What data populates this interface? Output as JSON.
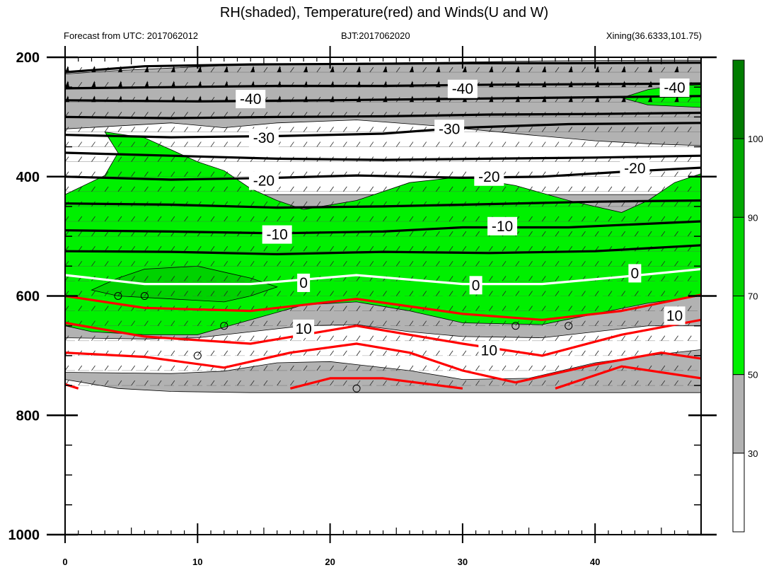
{
  "chart_data": {
    "type": "contour",
    "title": "RH(shaded), Temperature(red) and Winds(U and W)",
    "subtitle_left": "Forecast from UTC: 2017062012",
    "subtitle_center": "BJT:2017062020",
    "subtitle_right": "Xining(36.6333,101.75)",
    "x_range": [
      0,
      48
    ],
    "y_range": [
      200,
      1000
    ],
    "y_reversed": true,
    "x_ticks": [
      0,
      10,
      20,
      30,
      40
    ],
    "y_ticks": [
      200,
      400,
      600,
      800,
      1000
    ],
    "colorbar": {
      "tick_labels": [
        "30",
        "50",
        "70",
        "90",
        "100"
      ],
      "colors": [
        "#ffffff",
        "#b2b2b2",
        "#00f000",
        "#00d200",
        "#00a800",
        "#007c00"
      ]
    },
    "temperature_contours": [
      {
        "value": -40,
        "label": "-40",
        "color": "#000000",
        "points": [
          [
            0,
            225
          ],
          [
            6,
            215
          ],
          [
            14,
            212
          ],
          [
            22,
            211
          ],
          [
            30,
            210
          ],
          [
            38,
            210
          ],
          [
            48,
            209
          ]
        ]
      },
      {
        "value": -40,
        "label": "-40",
        "color": "#000000",
        "points": [
          [
            0,
            252
          ],
          [
            8,
            250
          ],
          [
            16,
            248
          ],
          [
            24,
            248
          ],
          [
            32,
            246
          ],
          [
            40,
            245
          ],
          [
            48,
            244
          ]
        ]
      },
      {
        "value": -40,
        "label": "-40",
        "color": "#000000",
        "points": [
          [
            0,
            272
          ],
          [
            10,
            274
          ],
          [
            20,
            272
          ],
          [
            28,
            270
          ],
          [
            36,
            268
          ],
          [
            44,
            266
          ],
          [
            48,
            265
          ]
        ]
      },
      {
        "value": -30,
        "label": "-30",
        "color": "#000000",
        "points": [
          [
            0,
            300
          ],
          [
            8,
            302
          ],
          [
            16,
            300
          ],
          [
            24,
            299
          ],
          [
            32,
            296
          ],
          [
            40,
            295
          ],
          [
            48,
            293
          ]
        ]
      },
      {
        "value": -30,
        "label": "-30",
        "color": "#000000",
        "points": [
          [
            0,
            330
          ],
          [
            8,
            334
          ],
          [
            16,
            332
          ],
          [
            24,
            328
          ],
          [
            30,
            318
          ],
          [
            38,
            312
          ],
          [
            48,
            310
          ]
        ]
      },
      {
        "value": -20,
        "label": "-20",
        "color": "#000000",
        "points": [
          [
            0,
            360
          ],
          [
            8,
            365
          ],
          [
            16,
            370
          ],
          [
            24,
            372
          ],
          [
            32,
            370
          ],
          [
            40,
            368
          ],
          [
            48,
            365
          ]
        ]
      },
      {
        "value": -20,
        "label": "-20",
        "color": "#000000",
        "points": [
          [
            0,
            400
          ],
          [
            8,
            405
          ],
          [
            16,
            402
          ],
          [
            22,
            398
          ],
          [
            30,
            402
          ],
          [
            36,
            400
          ],
          [
            42,
            392
          ],
          [
            48,
            385
          ]
        ]
      },
      {
        "value": -10,
        "label": "-10",
        "color": "#000000",
        "points": [
          [
            0,
            445
          ],
          [
            8,
            447
          ],
          [
            16,
            452
          ],
          [
            24,
            450
          ],
          [
            32,
            446
          ],
          [
            40,
            442
          ],
          [
            48,
            440
          ]
        ]
      },
      {
        "value": -10,
        "label": "-10",
        "color": "#000000",
        "points": [
          [
            0,
            490
          ],
          [
            8,
            492
          ],
          [
            16,
            495
          ],
          [
            24,
            492
          ],
          [
            30,
            485
          ],
          [
            38,
            485
          ],
          [
            48,
            475
          ]
        ]
      },
      {
        "value": -10,
        "label": "-10",
        "color": "#000000",
        "points": [
          [
            0,
            525
          ],
          [
            8,
            526
          ],
          [
            16,
            530
          ],
          [
            24,
            526
          ],
          [
            32,
            528
          ],
          [
            40,
            525
          ],
          [
            48,
            515
          ]
        ]
      },
      {
        "value": 0,
        "label": "0",
        "color": "#ffffff",
        "points": [
          [
            0,
            565
          ],
          [
            6,
            580
          ],
          [
            14,
            580
          ],
          [
            22,
            565
          ],
          [
            30,
            580
          ],
          [
            36,
            580
          ],
          [
            42,
            568
          ],
          [
            48,
            555
          ]
        ]
      },
      {
        "value": 10,
        "label": "10",
        "color": "#ff0000",
        "points": [
          [
            0,
            600
          ],
          [
            6,
            620
          ],
          [
            14,
            625
          ],
          [
            22,
            605
          ],
          [
            30,
            630
          ],
          [
            36,
            640
          ],
          [
            42,
            625
          ],
          [
            48,
            598
          ]
        ]
      },
      {
        "value": 10,
        "label": "10",
        "color": "#ff0000",
        "points": [
          [
            0,
            645
          ],
          [
            6,
            668
          ],
          [
            14,
            680
          ],
          [
            22,
            650
          ],
          [
            30,
            680
          ],
          [
            36,
            700
          ],
          [
            42,
            665
          ],
          [
            48,
            640
          ]
        ]
      },
      {
        "value": 10,
        "label": "10",
        "color": "#ff0000",
        "points": [
          [
            0,
            695
          ],
          [
            6,
            702
          ],
          [
            12,
            720
          ],
          [
            17,
            695
          ],
          [
            22,
            680
          ],
          [
            26,
            695
          ],
          [
            30,
            725
          ],
          [
            34,
            745
          ],
          [
            40,
            715
          ],
          [
            45,
            695
          ],
          [
            48,
            705
          ]
        ]
      },
      {
        "value": 10,
        "label": "10",
        "color": "#ff0000",
        "points": [
          [
            17,
            755
          ],
          [
            20,
            738
          ],
          [
            24,
            738
          ],
          [
            30,
            755
          ]
        ]
      },
      {
        "value": 10,
        "label": "10",
        "color": "#ff0000",
        "points": [
          [
            37,
            755
          ],
          [
            42,
            718
          ],
          [
            48,
            738
          ]
        ]
      },
      {
        "value": 10,
        "label": "10",
        "color": "#ff0000",
        "points": [
          [
            0,
            748
          ],
          [
            1,
            755
          ]
        ]
      }
    ],
    "contour_labels": [
      {
        "text": "-40",
        "x": 14,
        "y": 270
      },
      {
        "text": "-40",
        "x": 30,
        "y": 253
      },
      {
        "text": "-40",
        "x": 46,
        "y": 251
      },
      {
        "text": "-30",
        "x": 15,
        "y": 335
      },
      {
        "text": "-30",
        "x": 29,
        "y": 320
      },
      {
        "text": "-20",
        "x": 15,
        "y": 407
      },
      {
        "text": "-20",
        "x": 32,
        "y": 400
      },
      {
        "text": "-20",
        "x": 43,
        "y": 386
      },
      {
        "text": "-10",
        "x": 16,
        "y": 497
      },
      {
        "text": "-10",
        "x": 33,
        "y": 483
      },
      {
        "text": "0",
        "x": 18,
        "y": 578
      },
      {
        "text": "0",
        "x": 31,
        "y": 582
      },
      {
        "text": "0",
        "x": 43,
        "y": 562
      },
      {
        "text": "10",
        "x": 18,
        "y": 655
      },
      {
        "text": "10",
        "x": 32,
        "y": 691
      },
      {
        "text": "10",
        "x": 46,
        "y": 633
      }
    ],
    "rh_regions": [
      {
        "level": "30-50",
        "color": "#b2b2b2",
        "points": [
          [
            0,
            228
          ],
          [
            4,
            222
          ],
          [
            8,
            218
          ],
          [
            14,
            212
          ],
          [
            22,
            210
          ],
          [
            30,
            208
          ],
          [
            36,
            206
          ],
          [
            44,
            205
          ],
          [
            48,
            205
          ],
          [
            48,
            348
          ],
          [
            44,
            345
          ],
          [
            40,
            340
          ],
          [
            35,
            330
          ],
          [
            28,
            315
          ],
          [
            22,
            305
          ],
          [
            16,
            310
          ],
          [
            12,
            318
          ],
          [
            8,
            310
          ],
          [
            0,
            320
          ]
        ]
      },
      {
        "level": "30-50",
        "color": "#b2b2b2",
        "points": [
          [
            0,
            430
          ],
          [
            48,
            430
          ],
          [
            48,
            650
          ],
          [
            44,
            650
          ],
          [
            40,
            660
          ],
          [
            36,
            670
          ],
          [
            30,
            668
          ],
          [
            26,
            660
          ],
          [
            22,
            648
          ],
          [
            18,
            650
          ],
          [
            14,
            660
          ],
          [
            10,
            670
          ],
          [
            6,
            672
          ],
          [
            0,
            670
          ],
          [
            0,
            740
          ],
          [
            4,
            755
          ],
          [
            8,
            760
          ],
          [
            14,
            762
          ],
          [
            48,
            762
          ],
          [
            48,
            690
          ],
          [
            44,
            700
          ],
          [
            40,
            712
          ],
          [
            35,
            738
          ],
          [
            30,
            740
          ],
          [
            26,
            725
          ],
          [
            20,
            710
          ],
          [
            16,
            712
          ],
          [
            12,
            726
          ],
          [
            8,
            730
          ],
          [
            0,
            728
          ]
        ]
      },
      {
        "level": "50-70",
        "color": "#00f000",
        "points": [
          [
            0,
            430
          ],
          [
            3,
            398
          ],
          [
            4,
            360
          ],
          [
            3,
            325
          ],
          [
            6,
            335
          ],
          [
            8,
            355
          ],
          [
            10,
            375
          ],
          [
            12,
            390
          ],
          [
            14,
            420
          ],
          [
            16,
            440
          ],
          [
            18,
            455
          ],
          [
            22,
            440
          ],
          [
            26,
            410
          ],
          [
            30,
            400
          ],
          [
            34,
            415
          ],
          [
            38,
            440
          ],
          [
            42,
            460
          ],
          [
            44,
            440
          ],
          [
            46,
            410
          ],
          [
            48,
            395
          ],
          [
            48,
            600
          ],
          [
            44,
            612
          ],
          [
            40,
            630
          ],
          [
            36,
            648
          ],
          [
            30,
            645
          ],
          [
            26,
            625
          ],
          [
            22,
            610
          ],
          [
            18,
            615
          ],
          [
            14,
            640
          ],
          [
            10,
            665
          ],
          [
            6,
            665
          ],
          [
            2,
            660
          ],
          [
            0,
            650
          ]
        ]
      },
      {
        "level": "70-90",
        "color": "#00d200",
        "points": [
          [
            2,
            590
          ],
          [
            4,
            570
          ],
          [
            6,
            555
          ],
          [
            10,
            550
          ],
          [
            12,
            560
          ],
          [
            14,
            570
          ],
          [
            16,
            585
          ],
          [
            14,
            600
          ],
          [
            12,
            610
          ],
          [
            8,
            605
          ],
          [
            4,
            600
          ]
        ]
      },
      {
        "level": "50-70",
        "color": "#00f000",
        "points": [
          [
            42,
            268
          ],
          [
            44,
            254
          ],
          [
            46,
            248
          ],
          [
            48,
            246
          ],
          [
            48,
            284
          ],
          [
            44,
            280
          ]
        ]
      }
    ],
    "wind_barb_rows": [
      225,
      250,
      275,
      300,
      325,
      350,
      375,
      400,
      425,
      450,
      475,
      500,
      525,
      550,
      575,
      600,
      625,
      650,
      675,
      700,
      725,
      750
    ],
    "calm_circles": [
      [
        4,
        600
      ],
      [
        6,
        600
      ],
      [
        12,
        650
      ],
      [
        10,
        700
      ],
      [
        22,
        755
      ],
      [
        34,
        650
      ],
      [
        38,
        650
      ]
    ]
  }
}
